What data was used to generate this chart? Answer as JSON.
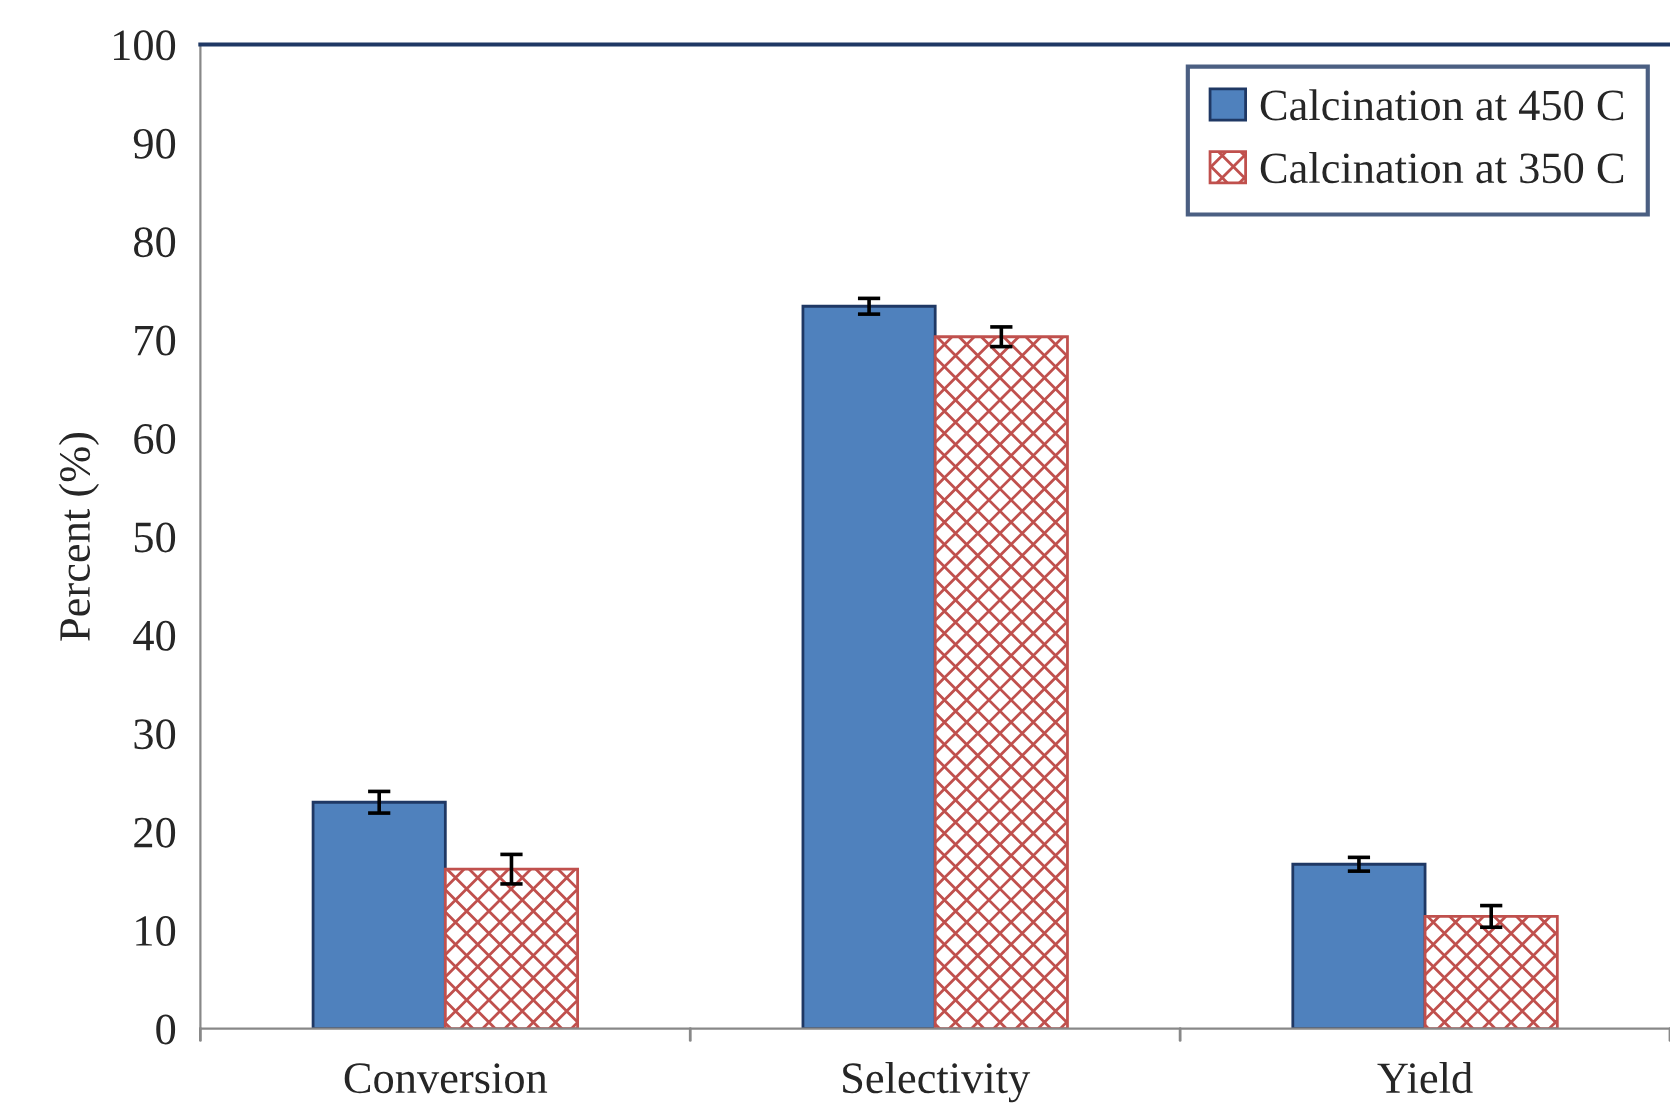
{
  "chart_data": {
    "type": "bar",
    "ylabel": "Percent (%)",
    "categories": [
      "Conversion",
      "Selectivity",
      "Yield"
    ],
    "series": [
      {
        "name": "Calcination at 450 C",
        "color": "#4f81bd",
        "values": [
          23.0,
          73.4,
          16.7
        ],
        "errors": [
          1.1,
          0.8,
          0.7
        ]
      },
      {
        "name": "Calcination at 350 C",
        "color": "#c0504d",
        "values": [
          16.2,
          70.3,
          11.4
        ],
        "errors": [
          1.5,
          1.0,
          1.1
        ]
      }
    ],
    "ylim": [
      0,
      100
    ],
    "yticks": [
      0,
      10,
      20,
      30,
      40,
      50,
      60,
      70,
      80,
      90,
      100
    ],
    "grid": false,
    "legend": "top right"
  }
}
